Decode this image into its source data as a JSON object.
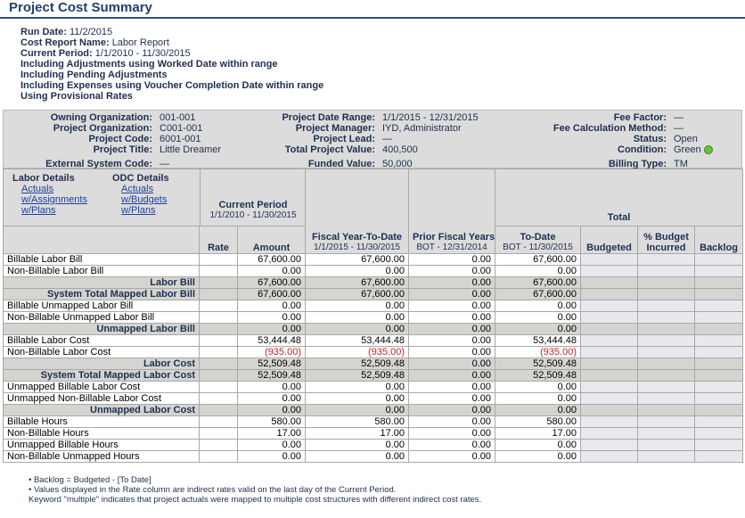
{
  "title": "Project Cost Summary",
  "run_info": {
    "run_date_label": "Run Date:",
    "run_date": "11/2/2015",
    "report_name_label": "Cost Report Name:",
    "report_name": "Labor Report",
    "period_label": "Current Period:",
    "period": "1/1/2010 - 11/30/2015",
    "line1": "Including Adjustments using Worked Date within range",
    "line2": "Including Pending Adjustments",
    "line3": "Including Expenses using Voucher Completion Date within range",
    "line4": "Using Provisional Rates"
  },
  "header": {
    "owning_org_label": "Owning Organization:",
    "owning_org": "001-001",
    "project_org_label": "Project Organization:",
    "project_org": "C001-001",
    "project_code_label": "Project Code:",
    "project_code": "6001-001",
    "project_title_label": "Project Title:",
    "project_title": "Little Dreamer",
    "ext_code_label": "External System Code:",
    "ext_code": "—",
    "date_range_label": "Project Date Range:",
    "date_range": "1/1/2015 - 12/31/2015",
    "manager_label": "Project Manager:",
    "manager": "IYD, Administrator",
    "lead_label": "Project Lead:",
    "lead": "—",
    "total_value_label": "Total Project Value:",
    "total_value": "400,500",
    "funded_label": "Funded Value:",
    "funded": "50,000",
    "fee_factor_label": "Fee Factor:",
    "fee_factor": "—",
    "fee_method_label": "Fee Calculation Method:",
    "fee_method": "—",
    "status_label": "Status:",
    "status": "Open",
    "condition_label": "Condition:",
    "condition": "Green",
    "billing_label": "Billing Type:",
    "billing": "TM"
  },
  "details": {
    "labor_title": "Labor Details",
    "labor_links": [
      "Actuals",
      "w/Assignments",
      "w/Plans"
    ],
    "odc_title": "ODC Details",
    "odc_links": [
      "Actuals",
      "w/Budgets",
      "w/Plans"
    ]
  },
  "columns": {
    "current_period": "Current Period",
    "current_period_sub": "1/1/2010 - 11/30/2015",
    "fiscal_ytd": "Fiscal Year-To-Date",
    "fiscal_ytd_sub": "1/1/2015 - 11/30/2015",
    "prior_fiscal": "Prior Fiscal Years",
    "prior_fiscal_sub": "BOT - 12/31/2014",
    "total": "Total",
    "to_date": "To-Date",
    "to_date_sub": "BOT - 11/30/2015",
    "rate": "Rate",
    "amount": "Amount",
    "budgeted": "Budgeted",
    "pct_budget": "% Budget Incurred",
    "backlog": "Backlog"
  },
  "rows": [
    {
      "label": "Billable Labor Bill",
      "sum": false,
      "amount": "67,600.00",
      "ytd": "67,600.00",
      "prior": "0.00",
      "todate": "67,600.00"
    },
    {
      "label": "Non-Billable Labor Bill",
      "sum": false,
      "amount": "0.00",
      "ytd": "0.00",
      "prior": "0.00",
      "todate": "0.00"
    },
    {
      "label": "Labor Bill",
      "sum": true,
      "amount": "67,600.00",
      "ytd": "67,600.00",
      "prior": "0.00",
      "todate": "67,600.00"
    },
    {
      "label": "System Total Mapped Labor Bill",
      "sum": true,
      "amount": "67,600.00",
      "ytd": "67,600.00",
      "prior": "0.00",
      "todate": "67,600.00"
    },
    {
      "label": "Billable Unmapped Labor Bill",
      "sum": false,
      "amount": "0.00",
      "ytd": "0.00",
      "prior": "0.00",
      "todate": "0.00"
    },
    {
      "label": "Non-Billable Unmapped Labor Bill",
      "sum": false,
      "amount": "0.00",
      "ytd": "0.00",
      "prior": "0.00",
      "todate": "0.00"
    },
    {
      "label": "Unmapped Labor Bill",
      "sum": true,
      "amount": "0.00",
      "ytd": "0.00",
      "prior": "0.00",
      "todate": "0.00"
    },
    {
      "label": "Billable Labor Cost",
      "sum": false,
      "amount": "53,444.48",
      "ytd": "53,444.48",
      "prior": "0.00",
      "todate": "53,444.48"
    },
    {
      "label": "Non-Billable Labor Cost",
      "sum": false,
      "neg": true,
      "amount": "(935.00)",
      "ytd": "(935.00)",
      "prior": "0.00",
      "todate": "(935.00)"
    },
    {
      "label": "Labor Cost",
      "sum": true,
      "amount": "52,509.48",
      "ytd": "52,509.48",
      "prior": "0.00",
      "todate": "52,509.48"
    },
    {
      "label": "System Total Mapped Labor Cost",
      "sum": true,
      "amount": "52,509.48",
      "ytd": "52,509.48",
      "prior": "0.00",
      "todate": "52,509.48"
    },
    {
      "label": "Unmapped Billable Labor Cost",
      "sum": false,
      "amount": "0.00",
      "ytd": "0.00",
      "prior": "0.00",
      "todate": "0.00"
    },
    {
      "label": "Unmapped Non-Billable Labor Cost",
      "sum": false,
      "amount": "0.00",
      "ytd": "0.00",
      "prior": "0.00",
      "todate": "0.00"
    },
    {
      "label": "Unmapped Labor Cost",
      "sum": true,
      "amount": "0.00",
      "ytd": "0.00",
      "prior": "0.00",
      "todate": "0.00"
    },
    {
      "label": "Billable Hours",
      "sum": false,
      "amount": "580.00",
      "ytd": "580.00",
      "prior": "0.00",
      "todate": "580.00"
    },
    {
      "label": "Non-Billable Hours",
      "sum": false,
      "amount": "17.00",
      "ytd": "17.00",
      "prior": "0.00",
      "todate": "17.00"
    },
    {
      "label": "Unmapped Billable Hours",
      "sum": false,
      "amount": "0.00",
      "ytd": "0.00",
      "prior": "0.00",
      "todate": "0.00"
    },
    {
      "label": "Non-Billable Unmapped Hours",
      "sum": false,
      "amount": "0.00",
      "ytd": "0.00",
      "prior": "0.00",
      "todate": "0.00"
    }
  ],
  "notes": [
    "•   Backlog = Budgeted - [To Date]",
    "•   Values displayed in the Rate column are indirect rates valid on the last day of the Current Period.",
    "     Keyword \"multiple\" indicates that project actuals were mapped to multiple cost structures with different indirect cost rates."
  ],
  "colors": {
    "title": "#1f3f6f",
    "negative": "#cc2222",
    "condition_green": "#6abf3a"
  }
}
